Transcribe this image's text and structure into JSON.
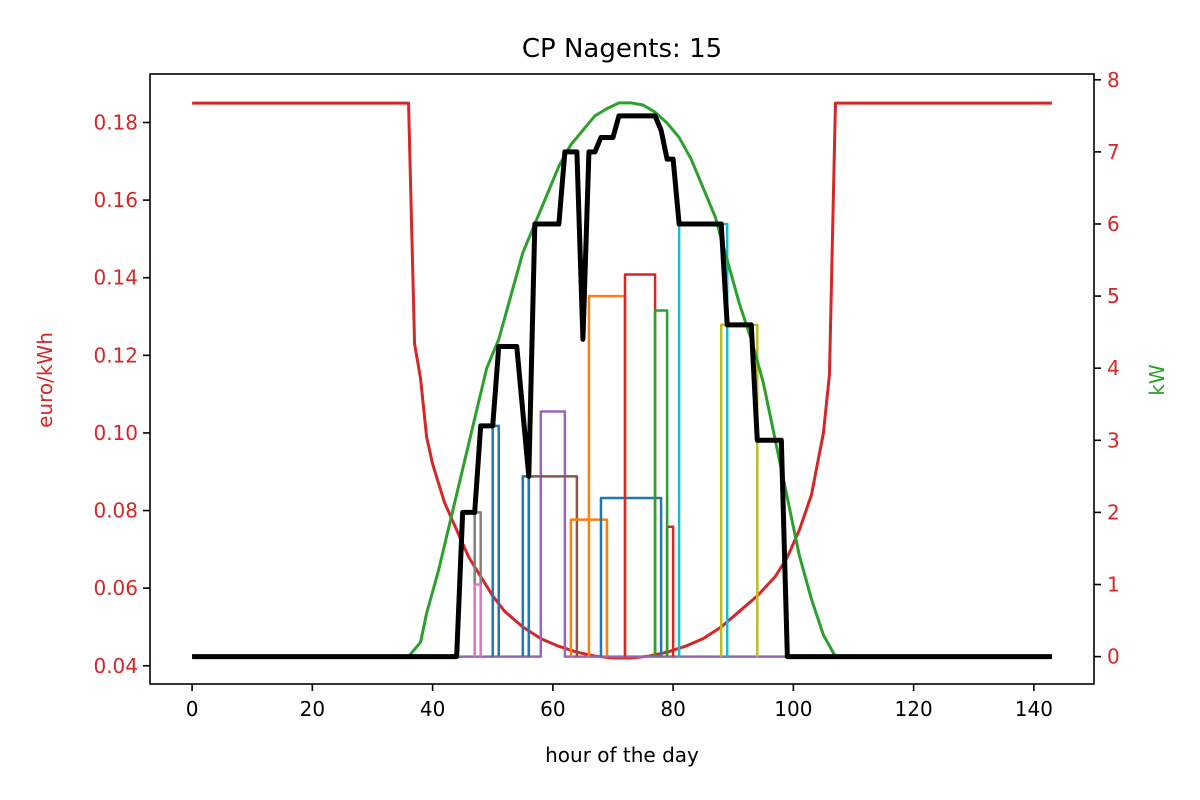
{
  "chart_data": {
    "type": "line",
    "title": "CP Nagents: 15",
    "xlabel": "hour of the day",
    "ylabel_left": "euro/kWh",
    "ylabel_right": "kW",
    "xlim": [
      -7,
      150
    ],
    "ylim_left": [
      0.0353,
      0.1925
    ],
    "ylim_right": [
      -0.38,
      8.08
    ],
    "xticks": [
      0,
      20,
      40,
      60,
      80,
      100,
      120,
      140
    ],
    "yticks_left": [
      0.04,
      0.06,
      0.08,
      0.1,
      0.12,
      0.14,
      0.16,
      0.18
    ],
    "yticks_left_labels": [
      "0.04",
      "0.06",
      "0.08",
      "0.10",
      "0.12",
      "0.14",
      "0.16",
      "0.18"
    ],
    "yticks_right": [
      0,
      1,
      2,
      3,
      4,
      5,
      6,
      7,
      8
    ],
    "colors": {
      "price": "#d62728",
      "pv": "#2ca02c",
      "total": "#000000",
      "left_axis": "#d62728",
      "right_axis": "#2ca02c",
      "right_ticks": "#d62728"
    },
    "price_series": {
      "name": "price",
      "axis": "left",
      "points": [
        [
          0,
          0.185
        ],
        [
          36,
          0.185
        ],
        [
          37,
          0.123
        ],
        [
          38,
          0.114
        ],
        [
          39,
          0.099
        ],
        [
          40,
          0.092
        ],
        [
          42,
          0.082
        ],
        [
          44,
          0.075
        ],
        [
          46,
          0.068
        ],
        [
          48,
          0.063
        ],
        [
          50,
          0.058
        ],
        [
          52,
          0.054
        ],
        [
          55,
          0.05
        ],
        [
          58,
          0.047
        ],
        [
          61,
          0.045
        ],
        [
          64,
          0.0435
        ],
        [
          67,
          0.0425
        ],
        [
          70,
          0.042
        ],
        [
          73,
          0.042
        ],
        [
          76,
          0.0425
        ],
        [
          79,
          0.0435
        ],
        [
          82,
          0.045
        ],
        [
          85,
          0.047
        ],
        [
          88,
          0.05
        ],
        [
          91,
          0.054
        ],
        [
          94,
          0.058
        ],
        [
          97,
          0.063
        ],
        [
          99,
          0.068
        ],
        [
          101,
          0.075
        ],
        [
          103,
          0.084
        ],
        [
          105,
          0.1
        ],
        [
          106,
          0.115
        ],
        [
          107,
          0.185
        ],
        [
          143,
          0.185
        ]
      ]
    },
    "pv_series": {
      "name": "pv",
      "axis": "right",
      "points": [
        [
          0,
          0
        ],
        [
          36,
          0
        ],
        [
          38,
          0.2
        ],
        [
          39,
          0.6
        ],
        [
          41,
          1.2
        ],
        [
          43,
          1.9
        ],
        [
          45,
          2.6
        ],
        [
          47,
          3.3
        ],
        [
          49,
          4.0
        ],
        [
          51,
          4.4
        ],
        [
          53,
          5.0
        ],
        [
          55,
          5.6
        ],
        [
          57,
          6.0
        ],
        [
          59,
          6.4
        ],
        [
          61,
          6.8
        ],
        [
          63,
          7.1
        ],
        [
          65,
          7.3
        ],
        [
          67,
          7.5
        ],
        [
          69,
          7.6
        ],
        [
          71,
          7.68
        ],
        [
          73,
          7.68
        ],
        [
          75,
          7.65
        ],
        [
          77,
          7.55
        ],
        [
          79,
          7.4
        ],
        [
          81,
          7.2
        ],
        [
          83,
          6.9
        ],
        [
          85,
          6.5
        ],
        [
          87,
          6.1
        ],
        [
          89,
          5.5
        ],
        [
          91,
          4.9
        ],
        [
          93,
          4.4
        ],
        [
          95,
          3.8
        ],
        [
          97,
          3.0
        ],
        [
          99,
          2.2
        ],
        [
          101,
          1.4
        ],
        [
          103,
          0.8
        ],
        [
          105,
          0.3
        ],
        [
          107,
          0
        ],
        [
          143,
          0
        ]
      ]
    },
    "total_series": {
      "name": "total",
      "axis": "right",
      "points": [
        [
          0,
          0
        ],
        [
          44,
          0
        ],
        [
          45,
          2
        ],
        [
          47,
          2
        ],
        [
          48,
          3.2
        ],
        [
          50,
          3.2
        ],
        [
          51,
          4.3
        ],
        [
          54,
          4.3
        ],
        [
          55,
          3.4
        ],
        [
          56,
          2.5
        ],
        [
          57,
          6
        ],
        [
          61,
          6
        ],
        [
          62,
          7
        ],
        [
          64,
          7
        ],
        [
          65,
          4.4
        ],
        [
          66,
          7
        ],
        [
          67,
          7
        ],
        [
          68,
          7.2
        ],
        [
          70,
          7.2
        ],
        [
          71,
          7.5
        ],
        [
          77,
          7.5
        ],
        [
          78,
          7.3
        ],
        [
          79,
          6.9
        ],
        [
          80,
          6.9
        ],
        [
          81,
          6
        ],
        [
          88,
          6
        ],
        [
          89,
          4.6
        ],
        [
          93,
          4.6
        ],
        [
          94,
          3.0
        ],
        [
          98,
          3.0
        ],
        [
          99,
          0
        ],
        [
          143,
          0
        ]
      ]
    },
    "agent_series": [
      {
        "color": "#9467bd",
        "axis": "right",
        "points": [
          [
            0,
            0
          ],
          [
            58,
            0
          ],
          [
            58,
            3.4
          ],
          [
            62,
            3.4
          ],
          [
            62,
            0
          ],
          [
            143,
            0
          ]
        ]
      },
      {
        "color": "#8c564b",
        "axis": "right",
        "points": [
          [
            56,
            0
          ],
          [
            56,
            2.5
          ],
          [
            64,
            2.5
          ],
          [
            64,
            0
          ]
        ]
      },
      {
        "color": "#ff7f0e",
        "axis": "right",
        "points": [
          [
            63,
            0
          ],
          [
            63,
            1.9
          ],
          [
            69,
            1.9
          ],
          [
            69,
            0
          ]
        ]
      },
      {
        "color": "#ff7f0e",
        "axis": "right",
        "points": [
          [
            66,
            0
          ],
          [
            66,
            5.0
          ],
          [
            72,
            5.0
          ],
          [
            72,
            0
          ]
        ]
      },
      {
        "color": "#1f77b4",
        "axis": "right",
        "points": [
          [
            68,
            0
          ],
          [
            68,
            2.2
          ],
          [
            78,
            2.2
          ],
          [
            78,
            0
          ]
        ]
      },
      {
        "color": "#d62728",
        "axis": "right",
        "points": [
          [
            72,
            0
          ],
          [
            72,
            5.3
          ],
          [
            77,
            5.3
          ],
          [
            77,
            0
          ]
        ]
      },
      {
        "color": "#d62728",
        "axis": "right",
        "points": [
          [
            79,
            0
          ],
          [
            79,
            1.8
          ],
          [
            80,
            1.8
          ],
          [
            80,
            0
          ]
        ]
      },
      {
        "color": "#2ca02c",
        "axis": "right",
        "points": [
          [
            77,
            0
          ],
          [
            77,
            4.8
          ],
          [
            79,
            4.8
          ],
          [
            79,
            0
          ]
        ]
      },
      {
        "color": "#17becf",
        "axis": "right",
        "points": [
          [
            81,
            0
          ],
          [
            81,
            6.0
          ],
          [
            89,
            6.0
          ],
          [
            89,
            0
          ]
        ]
      },
      {
        "color": "#bcbd22",
        "axis": "right",
        "points": [
          [
            88,
            0
          ],
          [
            88,
            4.6
          ],
          [
            94,
            4.6
          ],
          [
            94,
            0
          ]
        ]
      },
      {
        "color": "#7f7f7f",
        "axis": "right",
        "points": [
          [
            47,
            0
          ],
          [
            47,
            2.0
          ],
          [
            48,
            2.0
          ],
          [
            48,
            0
          ]
        ]
      },
      {
        "color": "#1f77b4",
        "axis": "right",
        "points": [
          [
            50,
            0
          ],
          [
            50,
            3.2
          ],
          [
            51,
            3.2
          ],
          [
            51,
            0
          ]
        ]
      },
      {
        "color": "#1f77b4",
        "axis": "right",
        "points": [
          [
            55,
            0
          ],
          [
            55,
            2.5
          ],
          [
            56,
            2.5
          ],
          [
            56,
            0
          ]
        ]
      },
      {
        "color": "#e377c2",
        "axis": "right",
        "points": [
          [
            47,
            0
          ],
          [
            47,
            1.0
          ],
          [
            48,
            1.0
          ],
          [
            48,
            0
          ]
        ]
      }
    ]
  }
}
